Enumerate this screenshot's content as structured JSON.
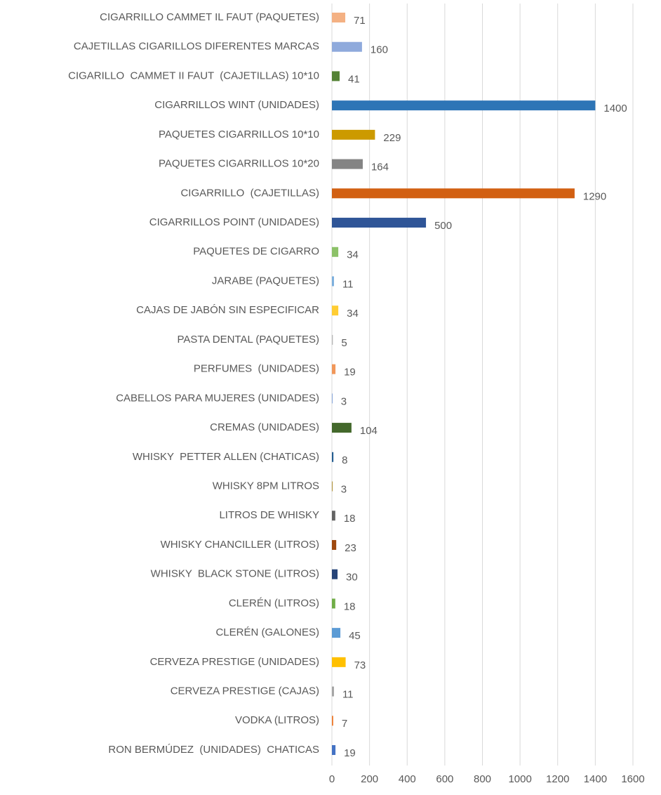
{
  "chart_data": {
    "type": "hbar",
    "categories": [
      "CIGARRILLO CAMMET IL FAUT (PAQUETES)",
      "CAJETILLAS CIGARILLOS DIFERENTES MARCAS",
      "CIGARILLO  CAMMET II FAUT  (CAJETILLAS) 10*10",
      "CIGARRILLOS WINT (UNIDADES)",
      "PAQUETES CIGARRILLOS 10*10",
      "PAQUETES CIGARRILLOS 10*20",
      "CIGARRILLO  (CAJETILLAS)",
      "CIGARRILLOS POINT (UNIDADES)",
      "PAQUETES DE CIGARRO",
      "JARABE (PAQUETES)",
      "CAJAS DE JABÓN SIN ESPECIFICAR",
      "PASTA DENTAL (PAQUETES)",
      "PERFUMES  (UNIDADES)",
      "CABELLOS PARA MUJERES (UNIDADES)",
      "CREMAS (UNIDADES)",
      "WHISKY  PETTER ALLEN (CHATICAS)",
      "WHISKY 8PM LITROS",
      "LITROS DE WHISKY",
      "WHISKY CHANCILLER (LITROS)",
      "WHISKY  BLACK STONE (LITROS)",
      "CLERÉN (LITROS)",
      "CLERÉN (GALONES)",
      "CERVEZA PRESTIGE (UNIDADES)",
      "CERVEZA PRESTIGE (CAJAS)",
      "VODKA (LITROS)",
      "RON BERMÚDEZ  (UNIDADES)  CHATICAS"
    ],
    "values": [
      71,
      160,
      41,
      1400,
      229,
      164,
      1290,
      500,
      34,
      11,
      34,
      5,
      19,
      3,
      104,
      8,
      3,
      18,
      23,
      30,
      18,
      45,
      73,
      11,
      7,
      19
    ],
    "colors": [
      "#f4b183",
      "#8faadc",
      "#548235",
      "#2e75b6",
      "#cc9a00",
      "#848484",
      "#d26012",
      "#2f5597",
      "#8cc168",
      "#7cafdd",
      "#ffcd33",
      "#b7b7b7",
      "#f1975a",
      "#698ed0",
      "#43682b",
      "#255e91",
      "#997300",
      "#636363",
      "#9e480e",
      "#264478",
      "#70ad47",
      "#5b9bd5",
      "#ffc000",
      "#a5a5a5",
      "#ed7d31",
      "#4472c4"
    ],
    "xlim": [
      0,
      1600
    ],
    "xticks": [
      0,
      200,
      400,
      600,
      800,
      1000,
      1200,
      1400,
      1600
    ],
    "grid": true
  }
}
